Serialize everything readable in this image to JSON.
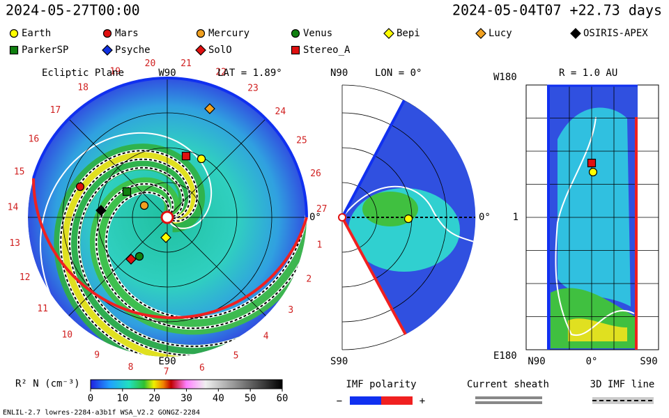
{
  "header": {
    "time": "2024-05-27T00:00",
    "run": "2024-05-04T07 +22.73 days"
  },
  "legend": [
    {
      "label": "Earth",
      "shape": "circle",
      "color": "#ffff00"
    },
    {
      "label": "Mars",
      "shape": "circle",
      "color": "#e01010"
    },
    {
      "label": "Mercury",
      "shape": "circle",
      "color": "#f0a020"
    },
    {
      "label": "Venus",
      "shape": "circle",
      "color": "#108010"
    },
    {
      "label": "Bepi",
      "shape": "diamond",
      "color": "#ffff00"
    },
    {
      "label": "Lucy",
      "shape": "diamond",
      "color": "#f0a020"
    },
    {
      "label": "OSIRIS-APEX",
      "shape": "diamond",
      "color": "#000000"
    },
    {
      "label": "ParkerSP",
      "shape": "square",
      "color": "#108010"
    },
    {
      "label": "Psyche",
      "shape": "diamond",
      "color": "#1030e0"
    },
    {
      "label": "SolO",
      "shape": "diamond",
      "color": "#e01010"
    },
    {
      "label": "Stereo_A",
      "shape": "square",
      "color": "#e01010"
    }
  ],
  "ecliptic": {
    "title": "Ecliptic Plane",
    "top": "W90",
    "lat": "LAT = 1.89°",
    "right": "0°",
    "bottom": "E90",
    "carrington": [
      1,
      2,
      3,
      4,
      5,
      6,
      7,
      8,
      9,
      10,
      11,
      12,
      13,
      14,
      15,
      16,
      17,
      18,
      19,
      20,
      21,
      22,
      23,
      24,
      25,
      26,
      27
    ]
  },
  "meridional": {
    "top": "N90",
    "lon": "LON = 0°",
    "right": "0°",
    "bottom": "S90"
  },
  "radial": {
    "top": "W180",
    "r": "R = 1.0 AU",
    "mid": "1",
    "bottom": "E180",
    "x_labels": [
      "N90",
      "0°",
      "S90"
    ]
  },
  "colorbar": {
    "label": "R² N (cm⁻³)",
    "lim": [
      0,
      60
    ],
    "ticks": [
      0,
      10,
      20,
      30,
      40,
      50,
      60
    ]
  },
  "imf": {
    "title": "IMF polarity",
    "minus": "−",
    "plus": "+"
  },
  "sheath": "Current sheath",
  "imf_line": "3D IMF line",
  "footer": "ENLIL-2.7 lowres-2284-a3b1f WSA_V2.2 GONGZ-2284"
}
